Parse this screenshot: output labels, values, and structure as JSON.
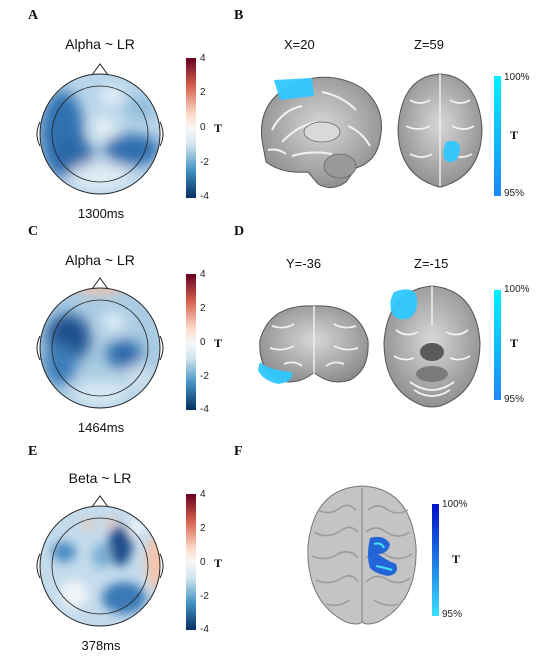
{
  "panels": {
    "A": {
      "letter": "A",
      "title": "Alpha ~ LR",
      "time": "1300ms",
      "cbar": {
        "ticks": [
          "4",
          "2",
          "0",
          "-2",
          "-4"
        ],
        "label": "T"
      }
    },
    "B": {
      "letter": "B",
      "views": [
        "X=20",
        "Z=59"
      ],
      "cbar": {
        "top": "100%",
        "bottom": "95%",
        "label": "T"
      }
    },
    "C": {
      "letter": "C",
      "title": "Alpha ~ LR",
      "time": "1464ms",
      "cbar": {
        "ticks": [
          "4",
          "2",
          "0",
          "-2",
          "-4"
        ],
        "label": "T"
      }
    },
    "D": {
      "letter": "D",
      "views": [
        "Y=-36",
        "Z=-15"
      ],
      "cbar": {
        "top": "100%",
        "bottom": "95%",
        "label": "T"
      }
    },
    "E": {
      "letter": "E",
      "title": "Beta ~ LR",
      "time": "378ms",
      "cbar": {
        "ticks": [
          "4",
          "2",
          "0",
          "-2",
          "-4"
        ],
        "label": "T"
      }
    },
    "F": {
      "letter": "F",
      "cbar": {
        "top": "100%",
        "bottom": "95%",
        "label": "T"
      }
    }
  },
  "colors": {
    "diverging_top": "#b2182b",
    "diverging_mid": "#f7f7f7",
    "diverging_bottom": "#2166ac",
    "sig_cyan_top": "#00eeff",
    "sig_cyan_bottom": "#1e90ff",
    "sig_blue_top": "#0000cc",
    "sig_blue_bottom": "#33ddff"
  }
}
